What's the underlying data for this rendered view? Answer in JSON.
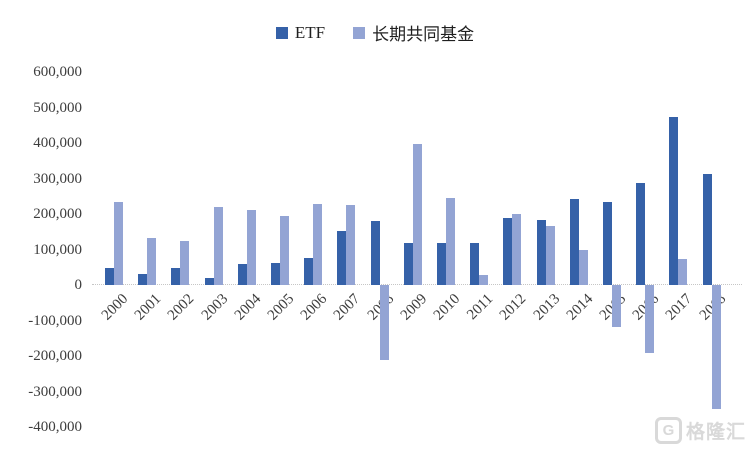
{
  "chart_data": {
    "type": "bar",
    "title": "",
    "categories": [
      "2000",
      "2001",
      "2002",
      "2003",
      "2004",
      "2005",
      "2006",
      "2007",
      "2008",
      "2009",
      "2010",
      "2011",
      "2012",
      "2013",
      "2014",
      "2015",
      "2016",
      "2017",
      "2018"
    ],
    "series": [
      {
        "name": "ETF",
        "color": "#3561a8",
        "values": [
          48000,
          31000,
          49000,
          19000,
          60000,
          61000,
          77000,
          152000,
          181000,
          118000,
          119000,
          118000,
          188000,
          183000,
          242000,
          233000,
          287000,
          473000,
          313000
        ]
      },
      {
        "name": "长期共同基金",
        "color": "#93a4d4",
        "values": [
          235000,
          133000,
          125000,
          219000,
          210000,
          194000,
          228000,
          224000,
          -211000,
          397000,
          244000,
          29000,
          201000,
          165000,
          100000,
          -117000,
          -191000,
          72000,
          -348000
        ]
      }
    ],
    "ylim": [
      -400000,
      600000
    ],
    "ytick_step": 100000,
    "y_tick_labels": [
      "600,000",
      "500,000",
      "400,000",
      "300,000",
      "200,000",
      "100,000",
      "0",
      "-100,000",
      "-200,000",
      "-300,000",
      "-400,000"
    ],
    "xlabel": "",
    "ylabel": "",
    "grid": false,
    "legend_position": "top-center",
    "zero_line_style": "dotted"
  },
  "watermark": {
    "logo_letter": "G",
    "text": "格隆汇",
    "color": "#d9d9d9"
  }
}
